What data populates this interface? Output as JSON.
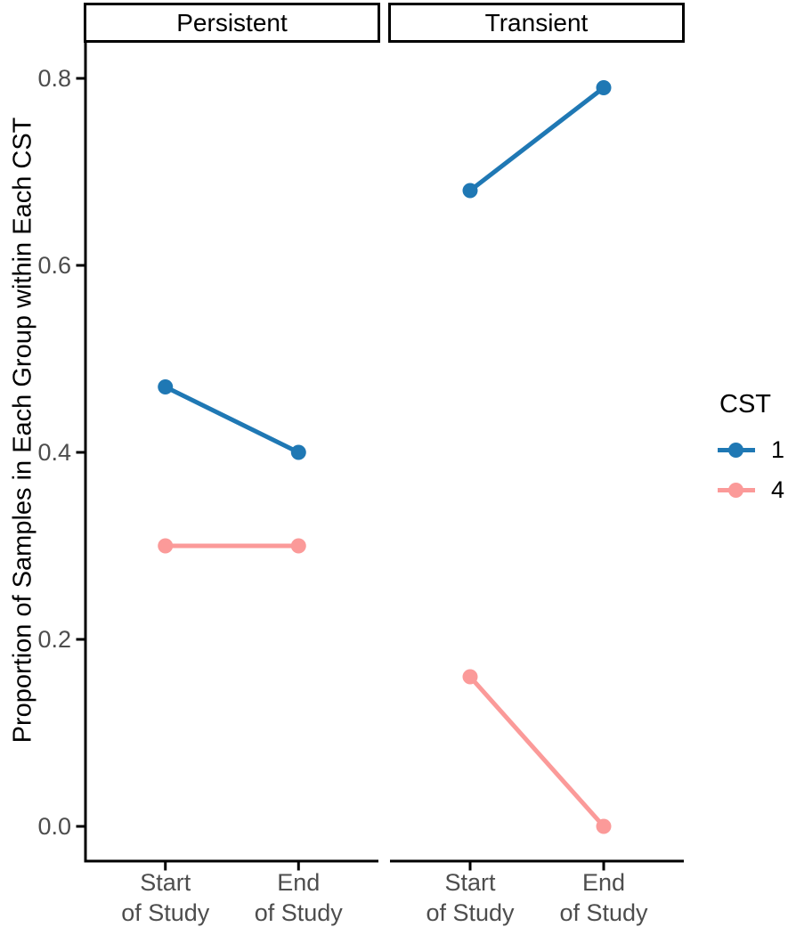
{
  "chart_data": {
    "type": "line",
    "title": "",
    "xlabel": "",
    "ylabel": "Proportion of Samples in Each Group within Each CST",
    "categories": [
      "Start\nof Study",
      "End\nof Study"
    ],
    "yticks": [
      {
        "value": 0.0,
        "label": "0.0"
      },
      {
        "value": 0.2,
        "label": "0.2"
      },
      {
        "value": 0.4,
        "label": "0.4"
      },
      {
        "value": 0.6,
        "label": "0.6"
      },
      {
        "value": 0.8,
        "label": "0.8"
      }
    ],
    "ylim": [
      -0.04,
      0.84
    ],
    "grid": false,
    "theme": "classic-faceted",
    "facets": [
      {
        "label": "Persistent",
        "series": [
          {
            "name": "1",
            "color": "#1F78B4",
            "values": [
              0.47,
              0.4
            ]
          },
          {
            "name": "4",
            "color": "#FB9A99",
            "values": [
              0.3,
              0.3
            ]
          }
        ]
      },
      {
        "label": "Transient",
        "series": [
          {
            "name": "1",
            "color": "#1F78B4",
            "values": [
              0.68,
              0.79
            ]
          },
          {
            "name": "4",
            "color": "#FB9A99",
            "values": [
              0.16,
              0.0
            ]
          }
        ]
      }
    ],
    "legend": {
      "title": "CST",
      "position": "right",
      "entries": [
        {
          "label": "1",
          "color": "#1F78B4"
        },
        {
          "label": "4",
          "color": "#FB9A99"
        }
      ]
    },
    "colors": {
      "cst_1": "#1F78B4",
      "cst_4": "#FB9A99",
      "axis_text": "#4D4D4D",
      "axis_line": "#000000",
      "strip_border": "#000000",
      "background": "#FFFFFF"
    }
  }
}
